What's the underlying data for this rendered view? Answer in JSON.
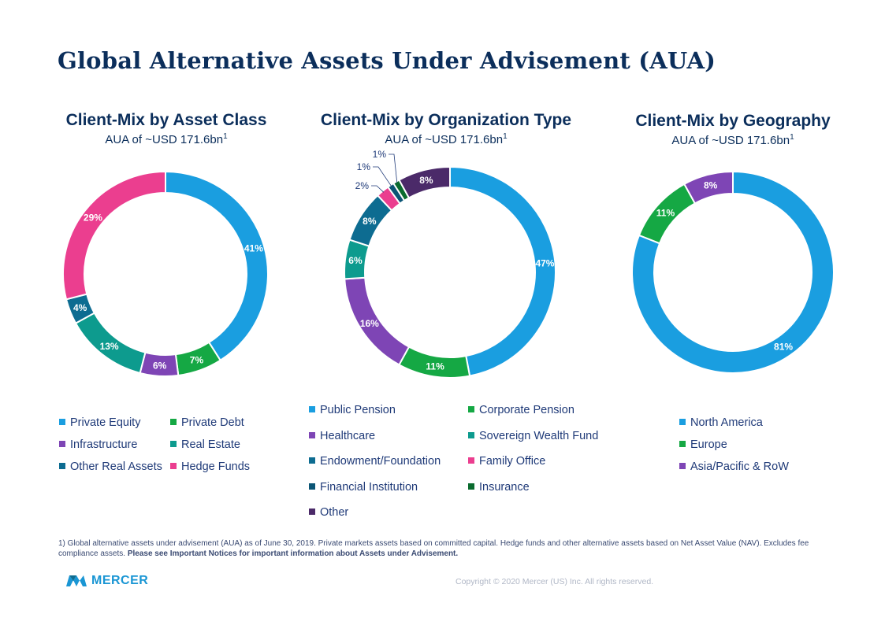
{
  "page": {
    "title": "Global Alternative Assets Under Advisement (AUA)",
    "footnote_normal": "1) Global alternative assets under advisement (AUA) as of June 30, 2019. Private markets assets based on committed capital. Hedge funds and other alternative assets based on Net Asset Value (NAV). Excludes fee compliance assets.",
    "footnote_bold": "Please see Important Notices for important information about Assets under Advisement.",
    "logo_text": "MERCER",
    "copyright": "Copyright © 2020 Mercer (US) Inc. All rights reserved."
  },
  "chart_data": [
    {
      "type": "pie",
      "title": "Client-Mix by Asset Class",
      "subtitle": "AUA of ~USD 171.6bn",
      "subtitle_sup": "1",
      "categories": [
        "Private Equity",
        "Private Debt",
        "Infrastructure",
        "Real Estate",
        "Other Real Assets",
        "Hedge Funds"
      ],
      "values": [
        41,
        7,
        6,
        13,
        4,
        29
      ],
      "slice_order": [
        0,
        1,
        2,
        3,
        4,
        5
      ],
      "labels": [
        "41%",
        "7%",
        "6%",
        "13%",
        "4%",
        "29%"
      ],
      "colors": [
        "#1a9ee0",
        "#15a844",
        "#7e45b5",
        "#0d9b8e",
        "#0d6c91",
        "#eb3e8f"
      ],
      "legend_placement": "bottom"
    },
    {
      "type": "pie",
      "title": "Client-Mix by Organization Type",
      "subtitle": "AUA of ~USD 171.6bn",
      "subtitle_sup": "1",
      "categories": [
        "Public Pension",
        "Corporate Pension",
        "Healthcare",
        "Sovereign Wealth Fund",
        "Endowment/Foundation",
        "Family Office",
        "Financial Institution",
        "Insurance",
        "Other"
      ],
      "values": [
        47,
        11,
        16,
        6,
        8,
        2,
        1,
        1,
        8
      ],
      "slice_order": [
        0,
        1,
        2,
        3,
        4,
        5,
        6,
        7,
        8
      ],
      "labels": [
        "47%",
        "11%",
        "16%",
        "6%",
        "8%",
        "2%",
        "1%",
        "1%",
        "8%"
      ],
      "colors": [
        "#1a9ee0",
        "#15a844",
        "#7e45b5",
        "#0d9b8e",
        "#0d6c91",
        "#eb3e8f",
        "#0b5575",
        "#0a6b2e",
        "#4b2a69"
      ],
      "legend_placement": "bottom"
    },
    {
      "type": "pie",
      "title": "Client-Mix by Geography",
      "subtitle": "AUA of ~USD 171.6bn",
      "subtitle_sup": "1",
      "categories": [
        "North America",
        "Europe",
        "Asia/Pacific & RoW"
      ],
      "values": [
        81,
        11,
        8
      ],
      "slice_order": [
        0,
        1,
        2
      ],
      "labels": [
        "81%",
        "11%",
        "8%"
      ],
      "colors": [
        "#1a9ee0",
        "#15a844",
        "#7e45b5"
      ],
      "legend_placement": "bottom"
    }
  ]
}
